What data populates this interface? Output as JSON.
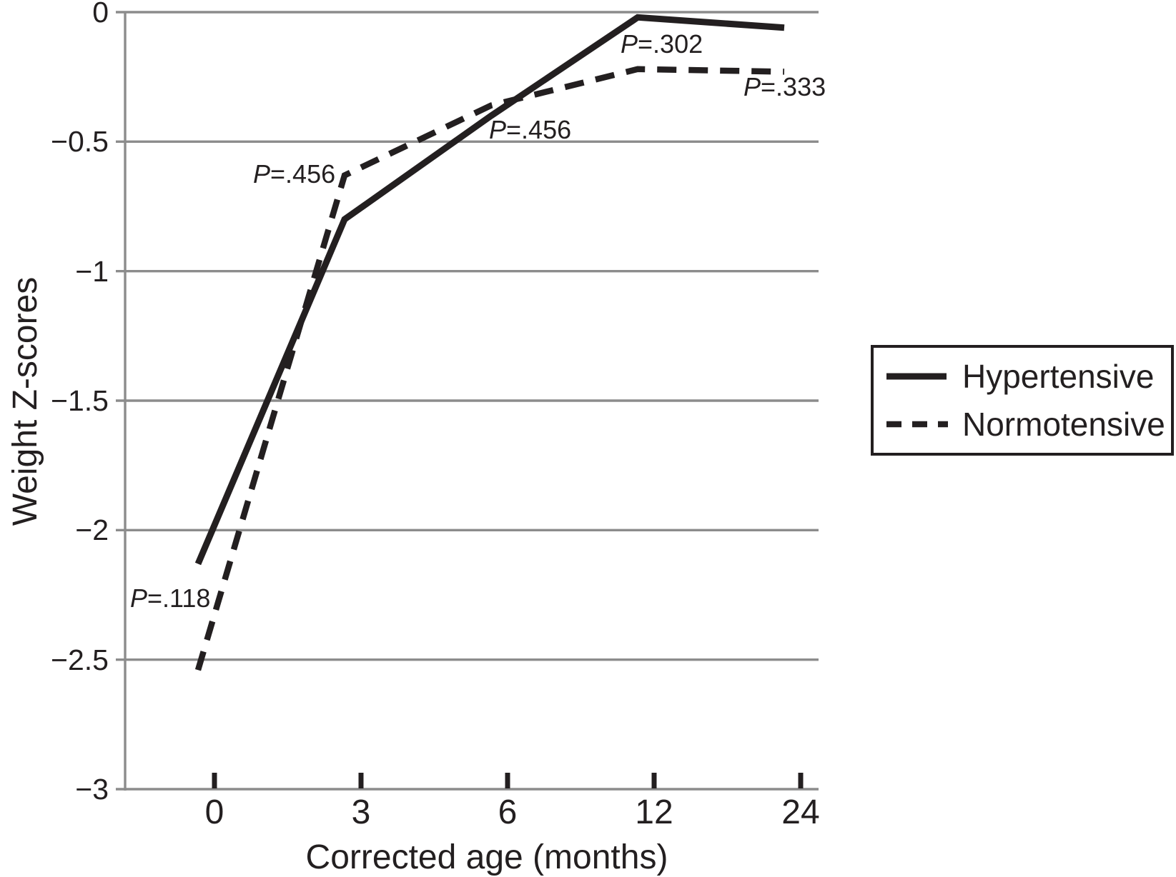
{
  "chart_data": {
    "type": "line",
    "title": "",
    "xlabel": "Corrected age (months)",
    "ylabel": "Weight Z-scores",
    "x_categories": [
      "0",
      "3",
      "6",
      "12",
      "24"
    ],
    "x_tick_labels": [
      "0",
      "3",
      "6",
      "12",
      "24"
    ],
    "y_tick_labels": [
      "0",
      "−0.5",
      "−1",
      "−1.5",
      "−2",
      "−2.5",
      "−3"
    ],
    "y_tick_values": [
      0,
      -0.5,
      -1,
      -1.5,
      -2,
      -2.5,
      -3
    ],
    "ylim": [
      -3,
      0
    ],
    "grid": "horizontal",
    "legend_position": "right",
    "series": [
      {
        "name": "Hypertensive",
        "line": "solid",
        "values": [
          -2.13,
          -0.8,
          -0.4,
          -0.02,
          -0.06
        ]
      },
      {
        "name": "Normotensive",
        "line": "dashed",
        "values": [
          -2.54,
          -0.63,
          -0.36,
          -0.22,
          -0.23
        ]
      }
    ],
    "annotations": [
      {
        "label": "P=.118",
        "x": "0"
      },
      {
        "label": "P=.456",
        "x": "3"
      },
      {
        "label": "P=.456",
        "x": "6"
      },
      {
        "label": "P=.302",
        "x": "12"
      },
      {
        "label": "P=.333",
        "x": "24"
      }
    ],
    "colors": {
      "line": "#231f20",
      "grid": "#8c8c8c",
      "text": "#231f20"
    }
  }
}
